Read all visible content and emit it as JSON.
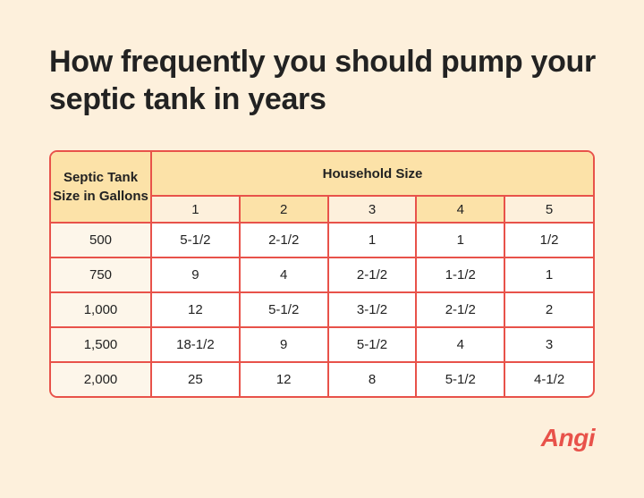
{
  "title": "How frequently you should pump your septic tank in years",
  "table": {
    "header": {
      "corner": "Septic Tank Size in Gallons",
      "group": "Household Size",
      "columns": [
        "1",
        "2",
        "3",
        "4",
        "5"
      ]
    },
    "rows": [
      [
        "500",
        "5-1/2",
        "2-1/2",
        "1",
        "1",
        "1/2"
      ],
      [
        "750",
        "9",
        "4",
        "2-1/2",
        "1-1/2",
        "1"
      ],
      [
        "1,000",
        "12",
        "5-1/2",
        "3-1/2",
        "2-1/2",
        "2"
      ],
      [
        "1,500",
        "18-1/2",
        "9",
        "5-1/2",
        "4",
        "3"
      ],
      [
        "2,000",
        "25",
        "12",
        "8",
        "5-1/2",
        "4-1/2"
      ]
    ]
  },
  "logo": "Angi"
}
